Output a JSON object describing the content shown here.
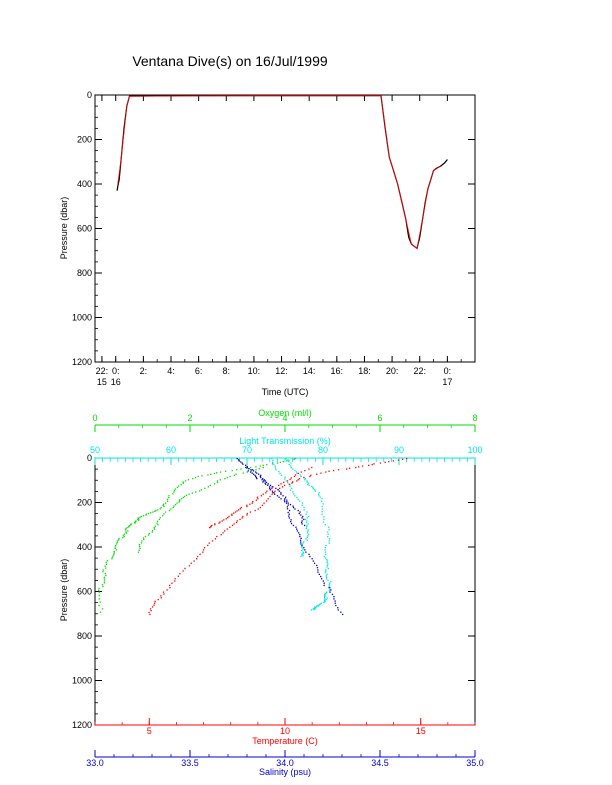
{
  "title": "Ventana Dive(s) on 16/Jul/1999",
  "chart_data": [
    {
      "type": "line",
      "title": "Ventana Dive(s) on 16/Jul/1999",
      "xlabel": "Time (UTC)",
      "ylabel": "Pressure (dbar)",
      "xlim": [
        -1.5,
        26
      ],
      "ylim": [
        0,
        1200
      ],
      "y_reversed": true,
      "x_ticks": [
        {
          "v": -1,
          "l1": "22:",
          "l2": "15"
        },
        {
          "v": 0,
          "l1": "0:",
          "l2": "16"
        },
        {
          "v": 2,
          "l1": "2:",
          "l2": ""
        },
        {
          "v": 4,
          "l1": "4:",
          "l2": ""
        },
        {
          "v": 6,
          "l1": "6:",
          "l2": ""
        },
        {
          "v": 8,
          "l1": "8:",
          "l2": ""
        },
        {
          "v": 10,
          "l1": "10:",
          "l2": ""
        },
        {
          "v": 12,
          "l1": "12:",
          "l2": ""
        },
        {
          "v": 14,
          "l1": "14:",
          "l2": ""
        },
        {
          "v": 16,
          "l1": "16:",
          "l2": ""
        },
        {
          "v": 18,
          "l1": "18:",
          "l2": ""
        },
        {
          "v": 20,
          "l1": "20:",
          "l2": ""
        },
        {
          "v": 22,
          "l1": "22:",
          "l2": ""
        },
        {
          "v": 24,
          "l1": "0:",
          "l2": "17"
        }
      ],
      "y_ticks": [
        0,
        200,
        400,
        600,
        800,
        1000,
        1200
      ],
      "series": [
        {
          "color": "#000000",
          "x": [
            0.1,
            0.15,
            0.25,
            0.4,
            0.6,
            0.8,
            1.0,
            5.0,
            10.0,
            15.0,
            18.5,
            19.2,
            19.5,
            19.8,
            20.1,
            20.4,
            20.7,
            21.0,
            21.2,
            21.4,
            21.6,
            21.8,
            22.0,
            22.2,
            22.4,
            22.6,
            22.8,
            23.0,
            23.2,
            23.5,
            23.8,
            24.0
          ],
          "y": [
            430,
            410,
            380,
            280,
            150,
            50,
            5,
            3,
            3,
            3,
            3,
            3,
            150,
            280,
            340,
            400,
            480,
            560,
            640,
            670,
            680,
            690,
            640,
            560,
            480,
            420,
            380,
            340,
            330,
            320,
            305,
            290
          ]
        },
        {
          "color": "#ff0000",
          "x": [
            0.15,
            0.4,
            0.8,
            1.0,
            10.0,
            18.5,
            19.2,
            19.8,
            20.4,
            21.0,
            21.4,
            21.8,
            22.2,
            22.6,
            23.0,
            23.5
          ],
          "y": [
            400,
            280,
            50,
            5,
            3,
            3,
            3,
            280,
            400,
            560,
            670,
            690,
            560,
            420,
            340,
            320
          ]
        }
      ]
    },
    {
      "type": "scatter",
      "ylabel": "Pressure (dbar)",
      "ylim": [
        0,
        1200
      ],
      "y_reversed": true,
      "y_ticks": [
        0,
        200,
        400,
        600,
        800,
        1000,
        1200
      ],
      "axes": [
        {
          "name": "Oxygen (ml/l)",
          "color": "#00dd00",
          "position": "top-outer",
          "range": [
            0,
            8
          ],
          "ticks": [
            0,
            2,
            4,
            6,
            8
          ]
        },
        {
          "name": "Light Transmission (%)",
          "color": "#00e5e5",
          "position": "top-inner",
          "range": [
            50,
            100
          ],
          "ticks": [
            50,
            60,
            70,
            80,
            90,
            100
          ]
        },
        {
          "name": "Temperature (C)",
          "color": "#ff0000",
          "position": "bottom-inner",
          "range": [
            3,
            17
          ],
          "ticks": [
            5,
            10,
            15
          ]
        },
        {
          "name": "Salinity (psu)",
          "color": "#0000cc",
          "position": "bottom-outer",
          "range": [
            33.0,
            35.0
          ],
          "ticks": [
            "33.0",
            "33.5",
            "34.0",
            "34.5",
            "35.0"
          ]
        }
      ],
      "series": [
        {
          "axis": 0,
          "color": "#00dd00",
          "x": [
            4.2,
            3.8,
            3.3,
            2.6,
            2.2,
            1.8,
            1.6,
            1.5,
            1.3,
            1.1,
            0.9,
            0.8,
            0.7,
            0.6,
            0.5,
            0.4,
            0.3,
            0.2,
            0.15,
            0.1,
            0.1
          ],
          "y": [
            0,
            20,
            40,
            60,
            80,
            110,
            150,
            200,
            230,
            250,
            270,
            290,
            310,
            340,
            370,
            410,
            450,
            500,
            550,
            600,
            690
          ]
        },
        {
          "axis": 0,
          "color": "#00dd00",
          "x": [
            3.5,
            3.0,
            2.6,
            2.2,
            1.9,
            1.7,
            1.5,
            1.3,
            1.15,
            1.0,
            0.9
          ],
          "y": [
            40,
            70,
            100,
            140,
            170,
            200,
            240,
            290,
            330,
            370,
            420
          ]
        },
        {
          "axis": 1,
          "color": "#00e5e5",
          "x": [
            75,
            76,
            77,
            78,
            79,
            79.5,
            80,
            80.5,
            80.5,
            80.3,
            80.3,
            80.5,
            80.7,
            80.5,
            80.3,
            80.0,
            79.5,
            78.8,
            78.4
          ],
          "y": [
            0,
            40,
            80,
            110,
            140,
            180,
            250,
            320,
            380,
            440,
            480,
            520,
            560,
            600,
            620,
            640,
            660,
            670,
            680
          ]
        },
        {
          "axis": 1,
          "color": "#00e5e5",
          "x": [
            73,
            74,
            75,
            76,
            77,
            77.8,
            78,
            77.8,
            77.5,
            77.2,
            77.0
          ],
          "y": [
            0,
            50,
            100,
            150,
            200,
            260,
            300,
            340,
            380,
            420,
            440
          ]
        },
        {
          "axis": 2,
          "color": "#ff0000",
          "x": [
            14.5,
            13.5,
            12.5,
            11.5,
            10.5,
            10.0,
            9.5,
            9.0,
            8.5,
            8.0,
            7.5,
            7.0,
            6.5,
            6.0,
            5.5,
            5.2,
            5.0
          ],
          "y": [
            0,
            20,
            40,
            60,
            90,
            120,
            160,
            220,
            260,
            300,
            350,
            410,
            470,
            540,
            600,
            650,
            700
          ]
        },
        {
          "axis": 2,
          "color": "#ff0000",
          "x": [
            11.0,
            10.3,
            9.7,
            9.2,
            8.7,
            8.3,
            7.9,
            7.5,
            7.2
          ],
          "y": [
            40,
            80,
            120,
            160,
            200,
            230,
            260,
            290,
            310
          ]
        },
        {
          "axis": 3,
          "color": "#0000cc",
          "x": [
            33.75,
            33.78,
            33.82,
            33.86,
            33.9,
            33.95,
            34.0,
            34.02,
            34.04,
            34.07,
            34.1,
            34.14,
            34.18,
            34.22,
            34.26,
            34.3
          ],
          "y": [
            0,
            30,
            60,
            90,
            120,
            160,
            200,
            250,
            300,
            350,
            400,
            460,
            520,
            580,
            640,
            700
          ]
        },
        {
          "axis": 3,
          "color": "#0000cc",
          "x": [
            33.8,
            33.85,
            33.9,
            33.95,
            34.0,
            34.05,
            34.08,
            34.1
          ],
          "y": [
            40,
            70,
            100,
            140,
            180,
            220,
            260,
            300
          ]
        }
      ]
    }
  ]
}
